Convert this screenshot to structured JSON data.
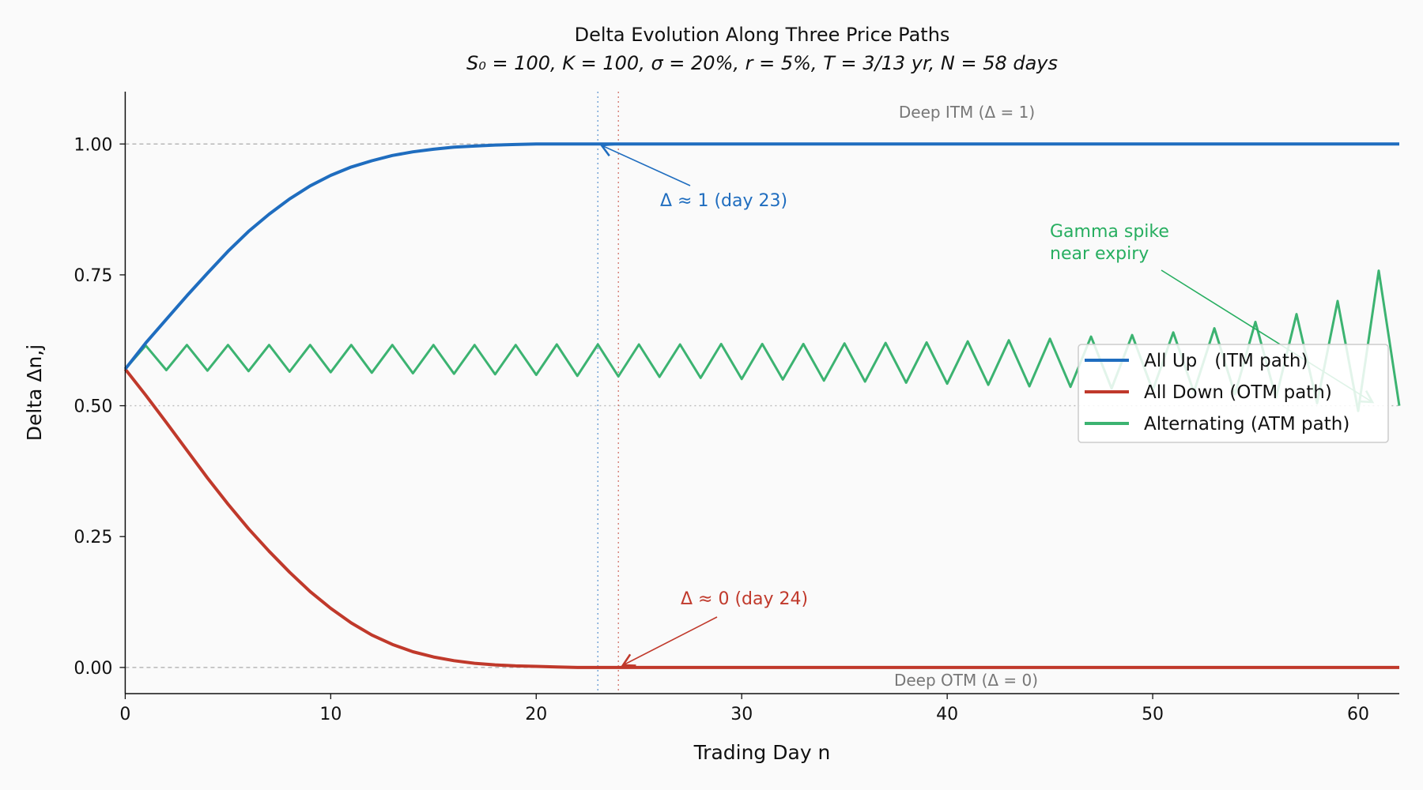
{
  "chart_data": {
    "type": "line",
    "title": "Delta Evolution Along Three Price Paths",
    "subtitle": "S₀ = 100,  K = 100,  σ = 20%,  r = 5%,  T = 3/13 yr,  N = 58 days",
    "xlabel": "Trading Day  n",
    "ylabel": "Delta  Δn,j",
    "xlim": [
      0,
      62
    ],
    "ylim": [
      -0.05,
      1.1
    ],
    "xticks": [
      0,
      10,
      20,
      30,
      40,
      50,
      60
    ],
    "xtick_labels": [
      "0",
      "10",
      "20",
      "30",
      "40",
      "50",
      "60"
    ],
    "yticks": [
      0.0,
      0.25,
      0.5,
      0.75,
      1.0
    ],
    "ytick_labels": [
      "0.00",
      "0.25",
      "0.50",
      "0.75",
      "1.00"
    ],
    "grid": false,
    "legend_placement": "center-right",
    "series": [
      {
        "name": "All Up   (ITM path)",
        "color": "#1f6dbf",
        "x_start": 0,
        "values": [
          0.57,
          0.62,
          0.665,
          0.71,
          0.753,
          0.795,
          0.833,
          0.866,
          0.895,
          0.92,
          0.94,
          0.956,
          0.968,
          0.978,
          0.985,
          0.99,
          0.994,
          0.996,
          0.998,
          0.999,
          1,
          1,
          1,
          1,
          1,
          1,
          1,
          1,
          1,
          1,
          1,
          1,
          1,
          1,
          1,
          1,
          1,
          1,
          1,
          1,
          1,
          1,
          1,
          1,
          1,
          1,
          1,
          1,
          1,
          1,
          1,
          1,
          1,
          1,
          1,
          1,
          1,
          1,
          1,
          1,
          1,
          1,
          1
        ]
      },
      {
        "name": "All Down (OTM path)",
        "color": "#c0392b",
        "x_start": 0,
        "values": [
          0.57,
          0.52,
          0.468,
          0.415,
          0.362,
          0.312,
          0.265,
          0.222,
          0.182,
          0.145,
          0.113,
          0.085,
          0.062,
          0.044,
          0.03,
          0.02,
          0.013,
          0.008,
          0.005,
          0.003,
          0.002,
          0.001,
          0,
          0,
          0,
          0,
          0,
          0,
          0,
          0,
          0,
          0,
          0,
          0,
          0,
          0,
          0,
          0,
          0,
          0,
          0,
          0,
          0,
          0,
          0,
          0,
          0,
          0,
          0,
          0,
          0,
          0,
          0,
          0,
          0,
          0,
          0,
          0,
          0,
          0,
          0,
          0,
          0
        ]
      },
      {
        "name": "Alternating (ATM path)",
        "color": "#3cb371",
        "x_start": 0,
        "values": [
          0.57,
          0.615,
          0.568,
          0.616,
          0.567,
          0.616,
          0.566,
          0.616,
          0.565,
          0.616,
          0.564,
          0.616,
          0.563,
          0.616,
          0.562,
          0.616,
          0.561,
          0.616,
          0.56,
          0.616,
          0.559,
          0.617,
          0.557,
          0.617,
          0.556,
          0.617,
          0.555,
          0.617,
          0.553,
          0.618,
          0.551,
          0.618,
          0.55,
          0.618,
          0.548,
          0.619,
          0.546,
          0.62,
          0.544,
          0.621,
          0.542,
          0.623,
          0.54,
          0.625,
          0.537,
          0.628,
          0.536,
          0.632,
          0.533,
          0.635,
          0.529,
          0.64,
          0.526,
          0.648,
          0.522,
          0.66,
          0.515,
          0.675,
          0.505,
          0.7,
          0.49,
          0.758,
          0.5
        ]
      }
    ],
    "reference_lines": {
      "deep_itm_level": 1.0,
      "deep_otm_level": 0.0,
      "atm_level": 0.5,
      "itm_day": 23,
      "otm_day": 24
    },
    "annotations": {
      "itm": "Δ ≈ 1 (day 23)",
      "otm": "Δ ≈ 0 (day 24)",
      "gamma_line1": "Gamma spike",
      "gamma_line2": "near expiry",
      "deep_itm": "Deep ITM  (Δ = 1)",
      "deep_otm": "Deep OTM  (Δ = 0)"
    }
  }
}
